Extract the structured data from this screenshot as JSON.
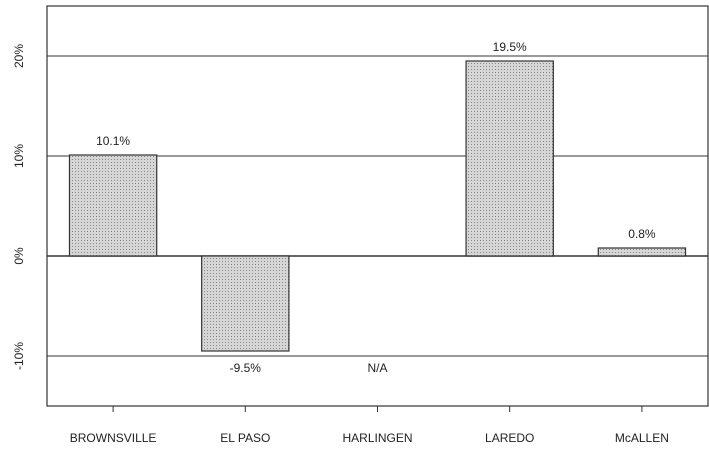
{
  "chart_data": {
    "type": "bar",
    "categories": [
      "BROWNSVILLE",
      "EL PASO",
      "HARLINGEN",
      "LAREDO",
      "McALLEN"
    ],
    "values": [
      10.1,
      -9.5,
      null,
      19.5,
      0.8
    ],
    "value_labels": [
      "10.1%",
      "-9.5%",
      "N/A",
      "19.5%",
      "0.8%"
    ],
    "color": "#cccccc",
    "ylim": [
      -15,
      25
    ],
    "yticks": [
      {
        "value": -10,
        "label": "-10%"
      },
      {
        "value": 0,
        "label": "0%"
      },
      {
        "value": 10,
        "label": "10%"
      },
      {
        "value": 20,
        "label": "20%"
      }
    ],
    "grid": true
  }
}
